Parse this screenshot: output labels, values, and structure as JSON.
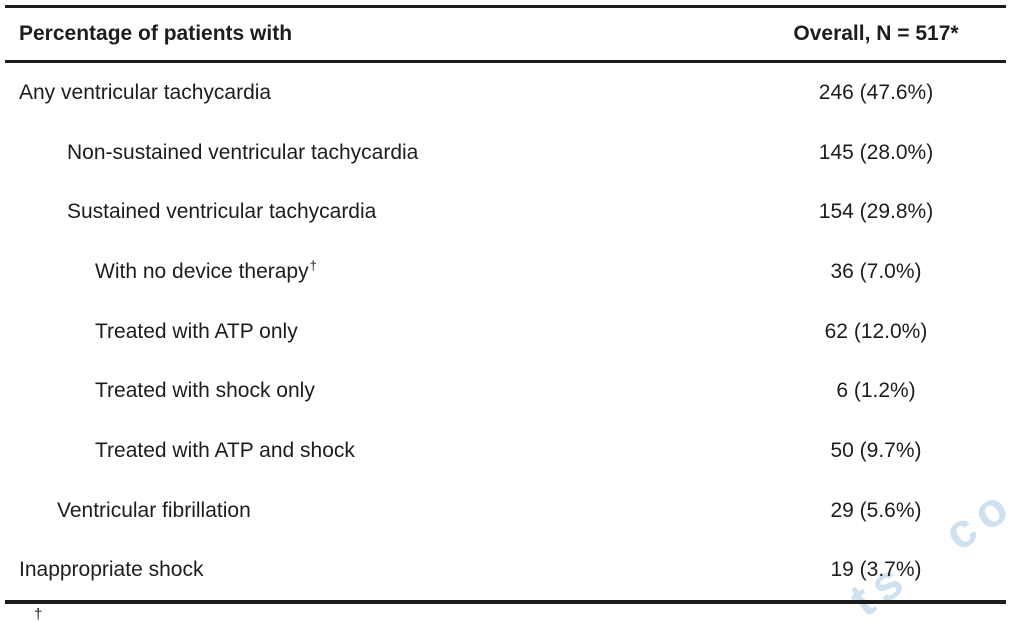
{
  "page": {
    "background": "#ffffff"
  },
  "table": {
    "header": {
      "col1": "Percentage of patients with",
      "col2": "Overall, N = 517*"
    },
    "rows": [
      {
        "label": "Any ventricular tachycardia",
        "value": "246 (47.6%)",
        "indent_level": 0
      },
      {
        "label": "Non-sustained ventricular tachycardia",
        "value": "145 (28.0%)",
        "indent_level": 2
      },
      {
        "label": "Sustained ventricular tachycardia",
        "value": "154 (29.8%)",
        "indent_level": 2
      },
      {
        "label": "With no device therapy",
        "sup": "†",
        "value": "36 (7.0%)",
        "indent_level": 3
      },
      {
        "label": "Treated with ATP only",
        "value": "62 (12.0%)",
        "indent_level": 3
      },
      {
        "label": "Treated with shock only",
        "value": "6 (1.2%)",
        "indent_level": 3
      },
      {
        "label": "Treated with ATP and shock",
        "value": "50 (9.7%)",
        "indent_level": 3
      },
      {
        "label": "Ventricular fibrillation",
        "value": "29 (5.6%)",
        "indent_level": 1
      },
      {
        "label": "Inappropriate shock",
        "value": "19 (3.7%)",
        "indent_level": 0
      }
    ]
  },
  "footnote": {
    "marker": "†"
  },
  "watermark": {
    "text": "ts co",
    "color": "#cfe0f0"
  },
  "colors": {
    "text": "#1d1d1d",
    "border": "#1c1c1c",
    "background": "#ffffff"
  }
}
